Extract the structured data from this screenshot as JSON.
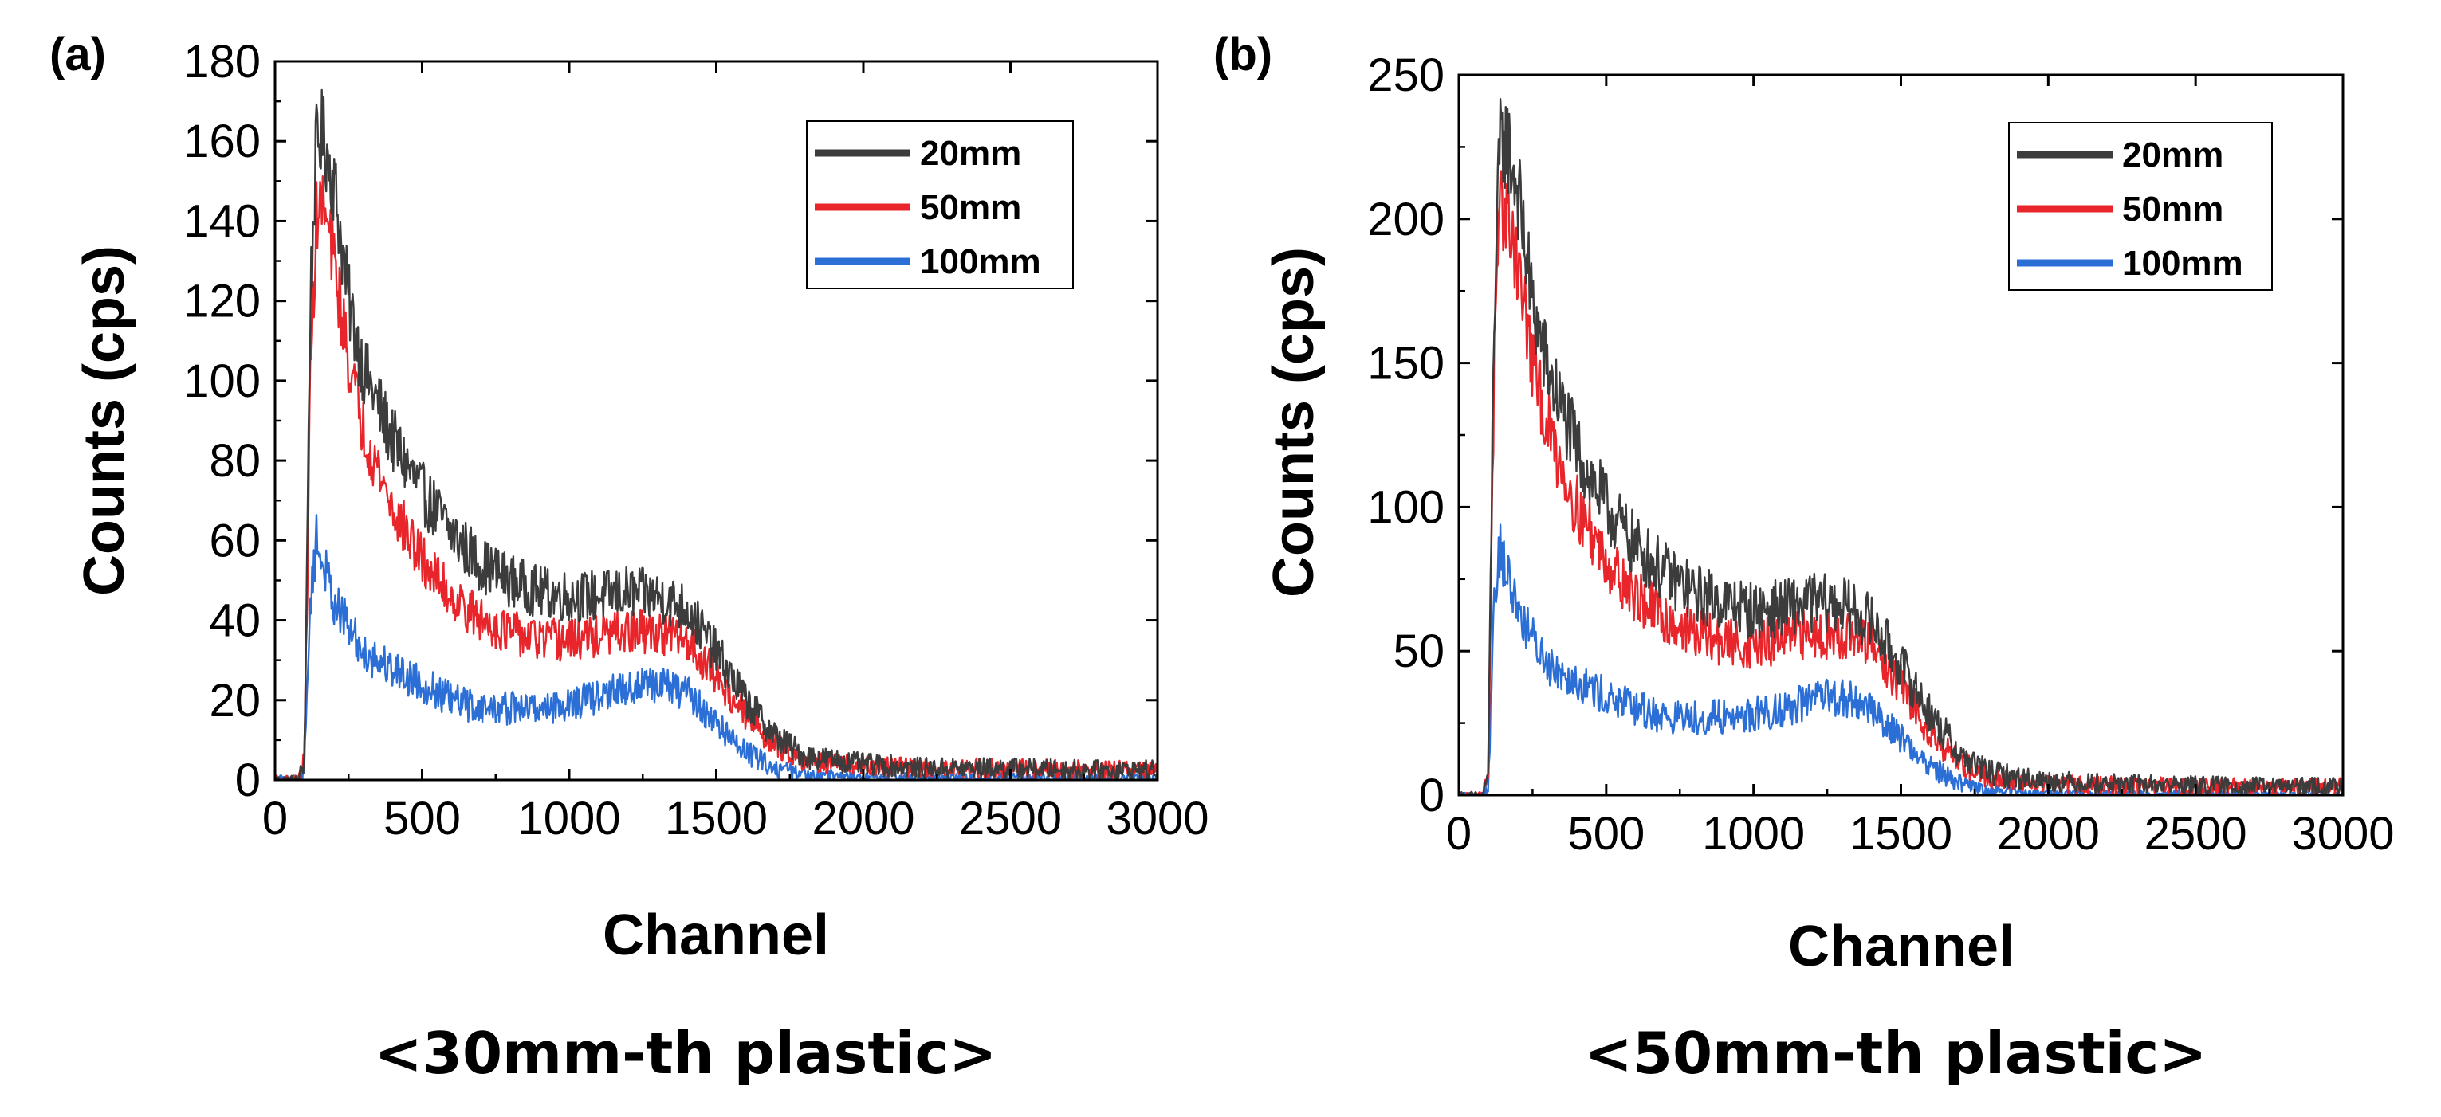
{
  "chart_data": [
    {
      "type": "line",
      "panel_label": "(a)",
      "caption": "<30mm-th plastic>",
      "xlabel": "Channel",
      "ylabel": "Counts (cps)",
      "xlim": [
        0,
        3000
      ],
      "ylim": [
        0,
        180
      ],
      "xticks": [
        0,
        500,
        1000,
        1500,
        2000,
        2500,
        3000
      ],
      "yticks": [
        0,
        20,
        40,
        60,
        80,
        100,
        120,
        140,
        160,
        180
      ],
      "grid": false,
      "legend_position": "top-right",
      "x": [
        0,
        80,
        100,
        120,
        140,
        160,
        200,
        250,
        300,
        400,
        500,
        600,
        700,
        800,
        900,
        1000,
        1100,
        1200,
        1300,
        1400,
        1500,
        1600,
        1700,
        1800,
        1900,
        2000,
        2200,
        2500,
        2800,
        3000
      ],
      "series": [
        {
          "name": "20mm",
          "color": "#3c3c3c",
          "noise": 5,
          "values": [
            0,
            0,
            5,
            120,
            158,
            162,
            150,
            120,
            103,
            85,
            72,
            62,
            54,
            50,
            47,
            46,
            46,
            47,
            46,
            43,
            32,
            20,
            11,
            6,
            5,
            4,
            3,
            3,
            2.5,
            2.5
          ]
        },
        {
          "name": "50mm",
          "color": "#e8252a",
          "noise": 4.5,
          "values": [
            0,
            0,
            5,
            100,
            140,
            145,
            130,
            105,
            88,
            68,
            55,
            46,
            40,
            37,
            35,
            35,
            36,
            37,
            37,
            35,
            26,
            16,
            9,
            5,
            4,
            3.5,
            3,
            3,
            2.5,
            2.5
          ]
        },
        {
          "name": "100mm",
          "color": "#2b6fd6",
          "noise": 4.5,
          "values": [
            0,
            0,
            3,
            45,
            60,
            55,
            45,
            38,
            32,
            28,
            24,
            20,
            18,
            18,
            18,
            19,
            21,
            23,
            24,
            22,
            14,
            7,
            3,
            1.5,
            1,
            0.8,
            0.5,
            0.5,
            0.3,
            0.3
          ]
        }
      ]
    },
    {
      "type": "line",
      "panel_label": "(b)",
      "caption": "<50mm-th plastic>",
      "xlabel": "Channel",
      "ylabel": "Counts (cps)",
      "xlim": [
        0,
        3000
      ],
      "ylim": [
        0,
        250
      ],
      "xticks": [
        0,
        500,
        1000,
        1500,
        2000,
        2500,
        3000
      ],
      "yticks": [
        0,
        50,
        100,
        150,
        200,
        250
      ],
      "grid": false,
      "legend_position": "top-right",
      "x": [
        0,
        80,
        100,
        120,
        140,
        160,
        200,
        250,
        300,
        400,
        500,
        600,
        700,
        800,
        900,
        1000,
        1100,
        1200,
        1300,
        1400,
        1500,
        1600,
        1700,
        1800,
        1900,
        2000,
        2200,
        2500,
        2800,
        3000
      ],
      "series": [
        {
          "name": "20mm",
          "color": "#3c3c3c",
          "noise": 7,
          "values": [
            0,
            0,
            8,
            170,
            225,
            228,
            210,
            170,
            148,
            120,
            100,
            86,
            77,
            70,
            67,
            64,
            65,
            67,
            66,
            60,
            45,
            28,
            14,
            8,
            6,
            5,
            4,
            3.5,
            3,
            3
          ]
        },
        {
          "name": "50mm",
          "color": "#e8252a",
          "noise": 6.5,
          "values": [
            0,
            0,
            8,
            150,
            200,
            205,
            185,
            150,
            128,
            100,
            82,
            69,
            61,
            56,
            53,
            52,
            54,
            56,
            56,
            52,
            38,
            22,
            11,
            6,
            5,
            4,
            3.5,
            3,
            3,
            3
          ]
        },
        {
          "name": "100mm",
          "color": "#2b6fd6",
          "noise": 6,
          "values": [
            0,
            0,
            4,
            70,
            85,
            78,
            65,
            54,
            46,
            40,
            34,
            30,
            27,
            27,
            27,
            28,
            30,
            33,
            34,
            30,
            20,
            10,
            4,
            2,
            1,
            0.8,
            0.5,
            0.5,
            0.3,
            0.3
          ]
        }
      ]
    }
  ]
}
